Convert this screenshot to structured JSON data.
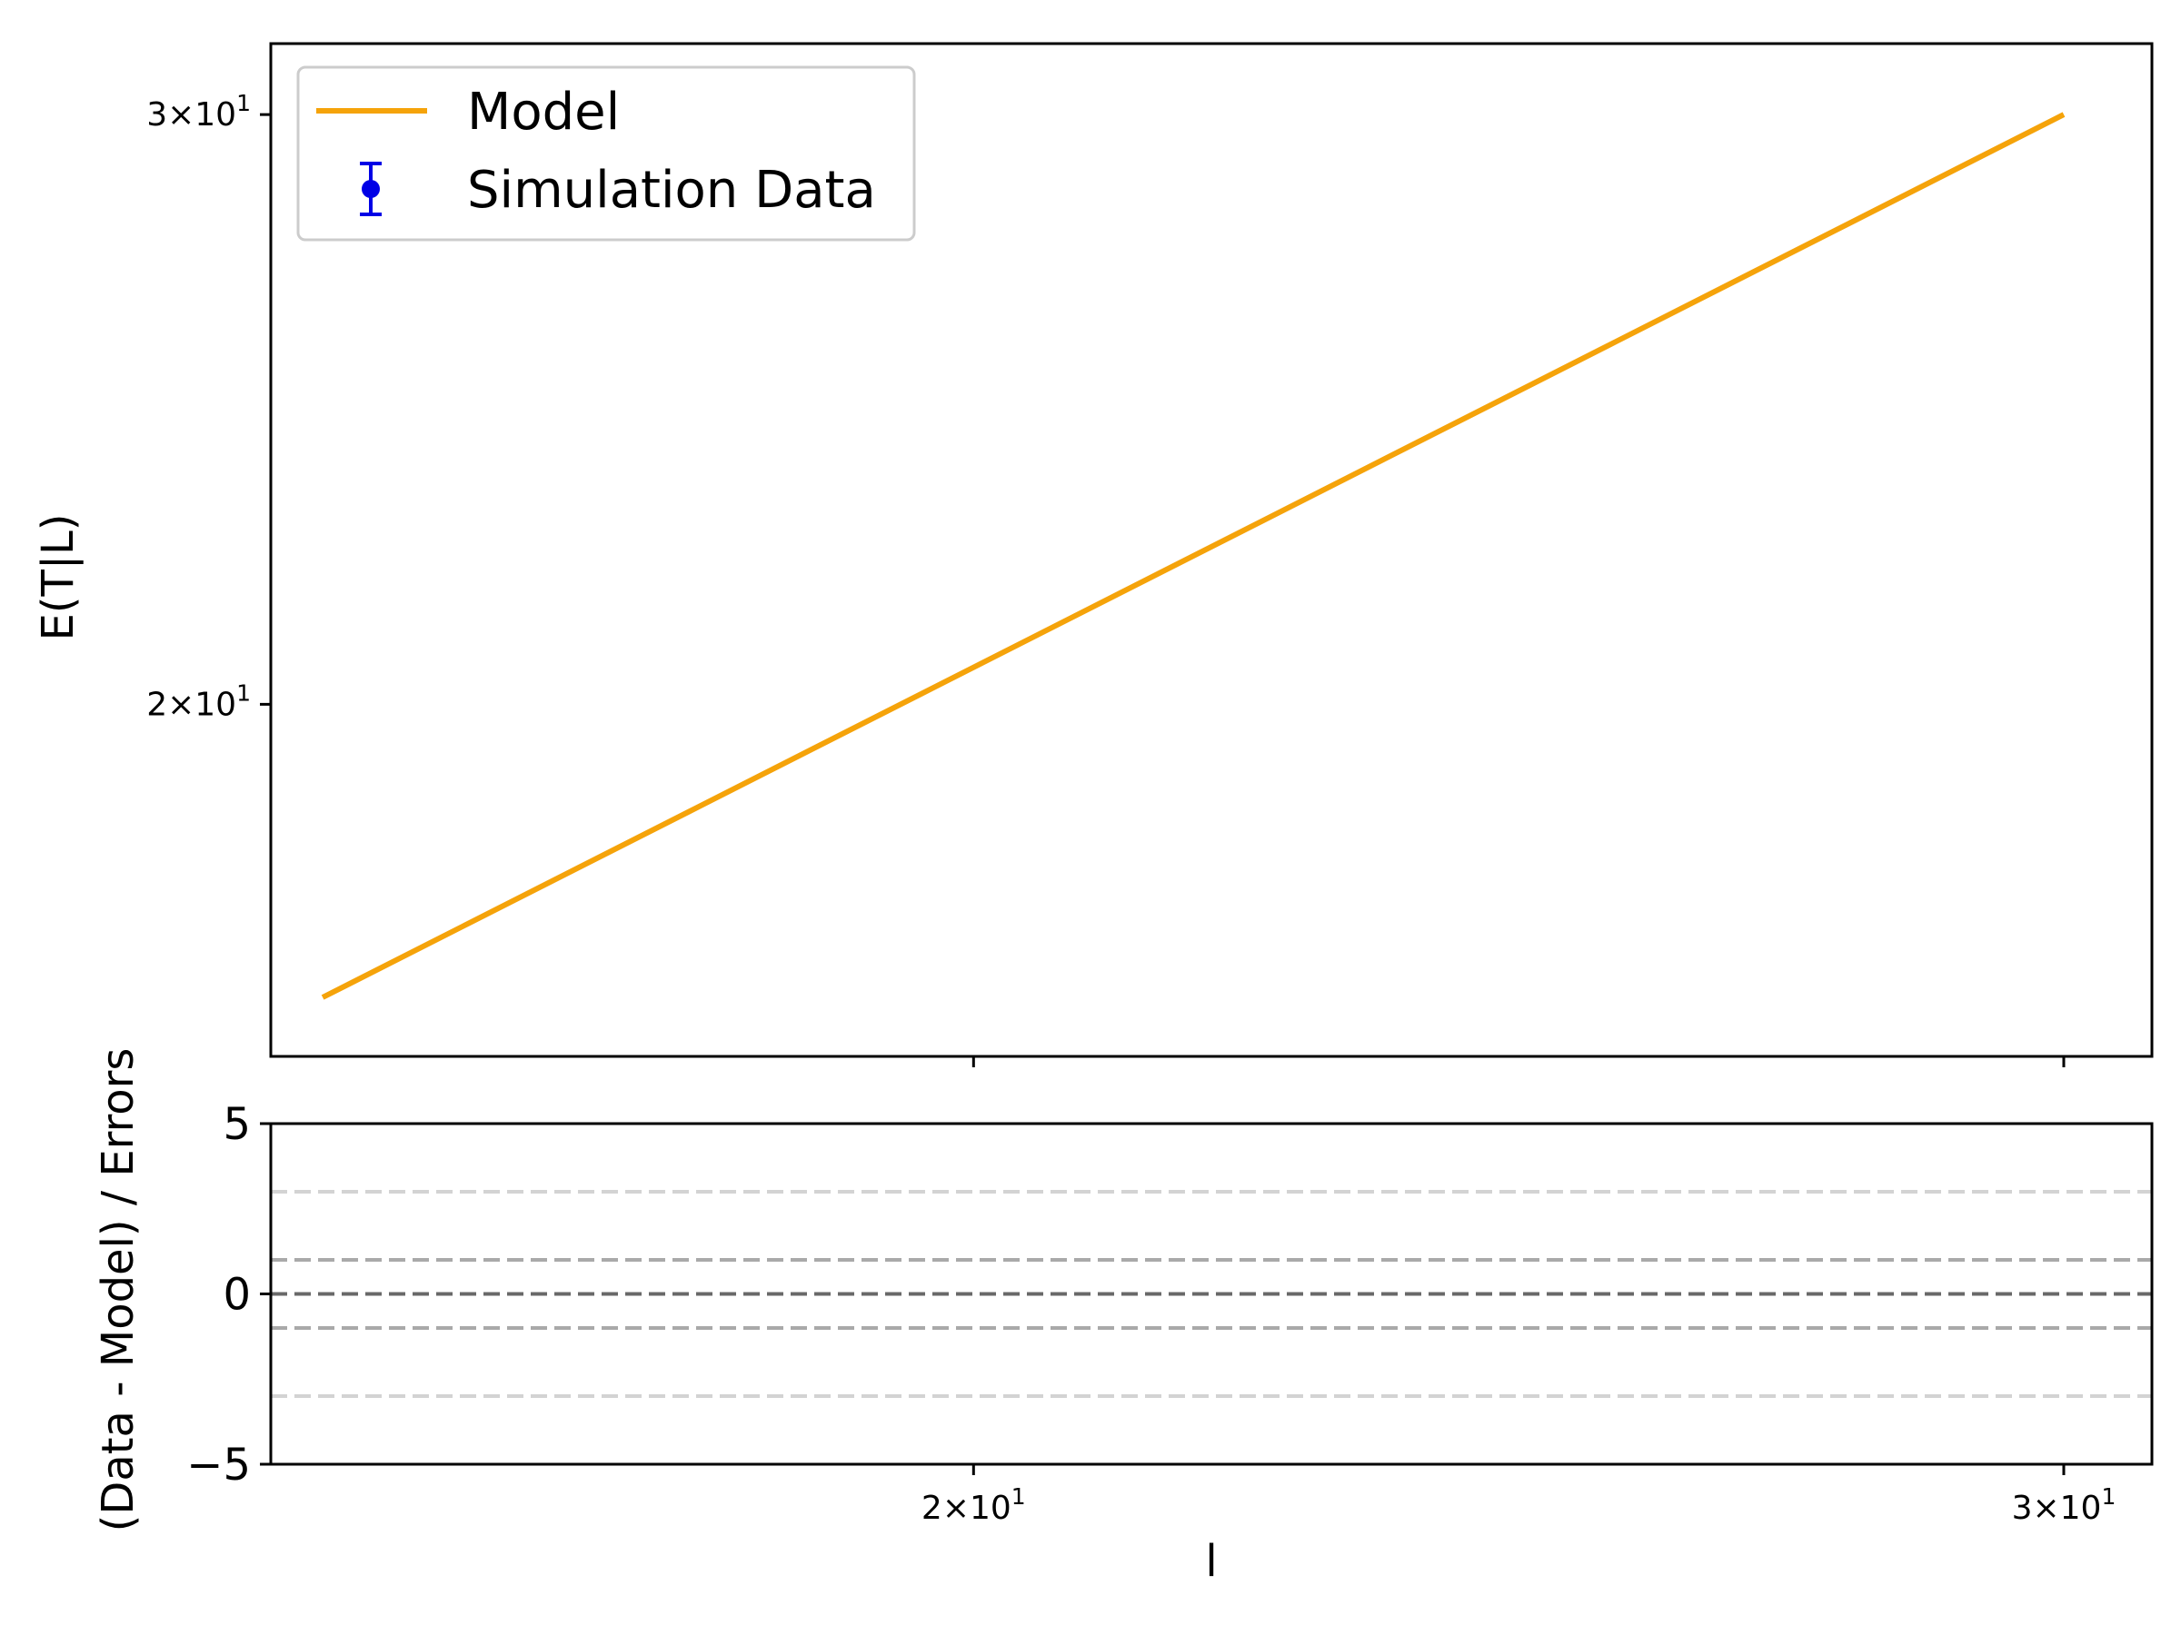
{
  "chart_data": [
    {
      "type": "line",
      "xscale": "log",
      "yscale": "log",
      "xlim": [
        15.4,
        31.0
      ],
      "ylim": [
        15.7,
        31.5
      ],
      "ylabel": "E(T|L)",
      "yticks": [
        {
          "value": 20,
          "mantissa": "2",
          "base": "10",
          "exp": "1"
        },
        {
          "value": 30,
          "mantissa": "3",
          "base": "10",
          "exp": "1"
        }
      ],
      "xticks": [
        20,
        30
      ],
      "grid": false,
      "legend": {
        "placement": "top-left",
        "entries": [
          {
            "label": "Model",
            "color": "#f5a30a",
            "kind": "line"
          },
          {
            "label": "Simulation Data",
            "color": "#0000e6",
            "kind": "errorbar"
          }
        ]
      },
      "series": [
        {
          "name": "Model",
          "color": "#f5a30a",
          "x": [
            15.7,
            30.0
          ],
          "y": [
            16.35,
            30.0
          ]
        },
        {
          "name": "Simulation Data",
          "color": "#0000e6",
          "x": [],
          "y": [],
          "yerr": []
        }
      ]
    },
    {
      "type": "line",
      "xscale": "log",
      "xlim": [
        15.4,
        31.0
      ],
      "ylim": [
        -5,
        5
      ],
      "xlabel": "l",
      "ylabel": "(Data - Model) / Errors",
      "yticks": [
        {
          "value": 5,
          "label": "5"
        },
        {
          "value": 0,
          "label": "0"
        },
        {
          "value": -5,
          "label": "−5"
        }
      ],
      "xticks": [
        {
          "value": 20,
          "mantissa": "2",
          "base": "10",
          "exp": "1"
        },
        {
          "value": 30,
          "mantissa": "3",
          "base": "10",
          "exp": "1"
        }
      ],
      "reference_lines": [
        {
          "y": 3,
          "color": "#d3d3d3",
          "style": "dashed"
        },
        {
          "y": 1,
          "color": "#a9a9a9",
          "style": "dashed"
        },
        {
          "y": 0,
          "color": "#696969",
          "style": "dashed"
        },
        {
          "y": -1,
          "color": "#a9a9a9",
          "style": "dashed"
        },
        {
          "y": -3,
          "color": "#d3d3d3",
          "style": "dashed"
        }
      ]
    }
  ]
}
